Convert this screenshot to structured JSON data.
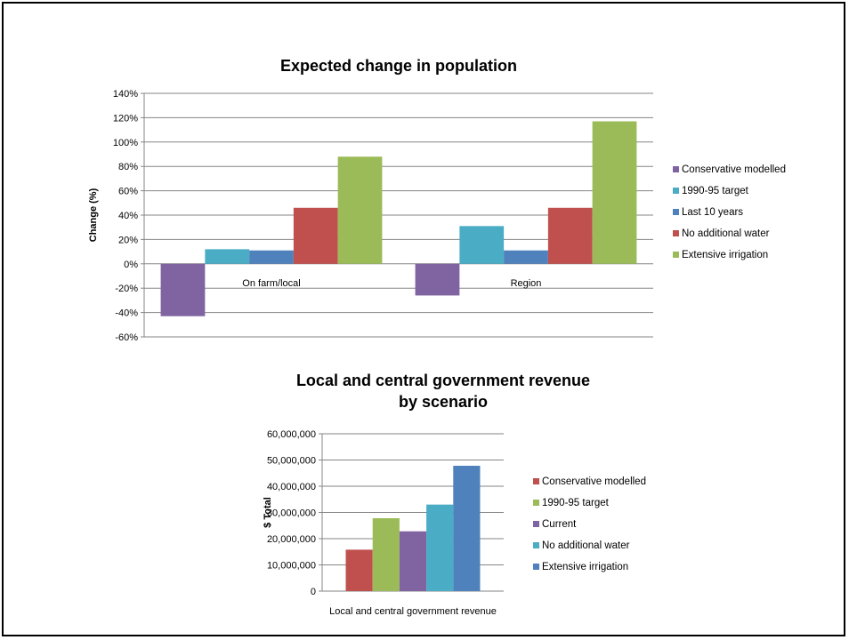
{
  "chart_data": [
    {
      "type": "bar",
      "title": "Expected change in population",
      "ylabel": "Change (%)",
      "xlabel": "",
      "ylim": [
        -60,
        140
      ],
      "yticks": [
        "140%",
        "120%",
        "100%",
        "80%",
        "60%",
        "40%",
        "20%",
        "0%",
        "-20%",
        "-40%",
        "-60%"
      ],
      "ytick_values": [
        140,
        120,
        100,
        80,
        60,
        40,
        20,
        0,
        -20,
        -40,
        -60
      ],
      "categories": [
        "On farm/local",
        "Region"
      ],
      "series": [
        {
          "name": "Conservative modelled",
          "color": "#8064a2",
          "values": [
            -43,
            -26
          ]
        },
        {
          "name": "1990-95 target",
          "color": "#4bacc6",
          "values": [
            12,
            31
          ]
        },
        {
          "name": "Last 10 years",
          "color": "#4f81bd",
          "values": [
            11,
            11
          ]
        },
        {
          "name": "No additional water",
          "color": "#c0504d",
          "values": [
            46,
            46
          ]
        },
        {
          "name": "Extensive irrigation",
          "color": "#9bbb59",
          "values": [
            88,
            117
          ]
        }
      ],
      "grid": true,
      "legend": "right"
    },
    {
      "type": "bar",
      "title": [
        "Local and central government revenue",
        "by scenario"
      ],
      "ylabel": "$ Total",
      "xlabel": "",
      "ylim": [
        0,
        60000000
      ],
      "yticks": [
        "60,000,000",
        "50,000,000",
        "40,000,000",
        "30,000,000",
        "20,000,000",
        "10,000,000",
        "0"
      ],
      "ytick_values": [
        60000000,
        50000000,
        40000000,
        30000000,
        20000000,
        10000000,
        0
      ],
      "categories": [
        "Local and central government revenue"
      ],
      "series": [
        {
          "name": "Conservative modelled",
          "color": "#c0504d",
          "values": [
            15800000
          ]
        },
        {
          "name": "1990-95 target",
          "color": "#9bbb59",
          "values": [
            27800000
          ]
        },
        {
          "name": "Current",
          "color": "#8064a2",
          "values": [
            22800000
          ]
        },
        {
          "name": "No additional water",
          "color": "#4bacc6",
          "values": [
            33000000
          ]
        },
        {
          "name": "Extensive irrigation",
          "color": "#4f81bd",
          "values": [
            47800000
          ]
        }
      ],
      "grid": true,
      "legend": "right"
    }
  ]
}
